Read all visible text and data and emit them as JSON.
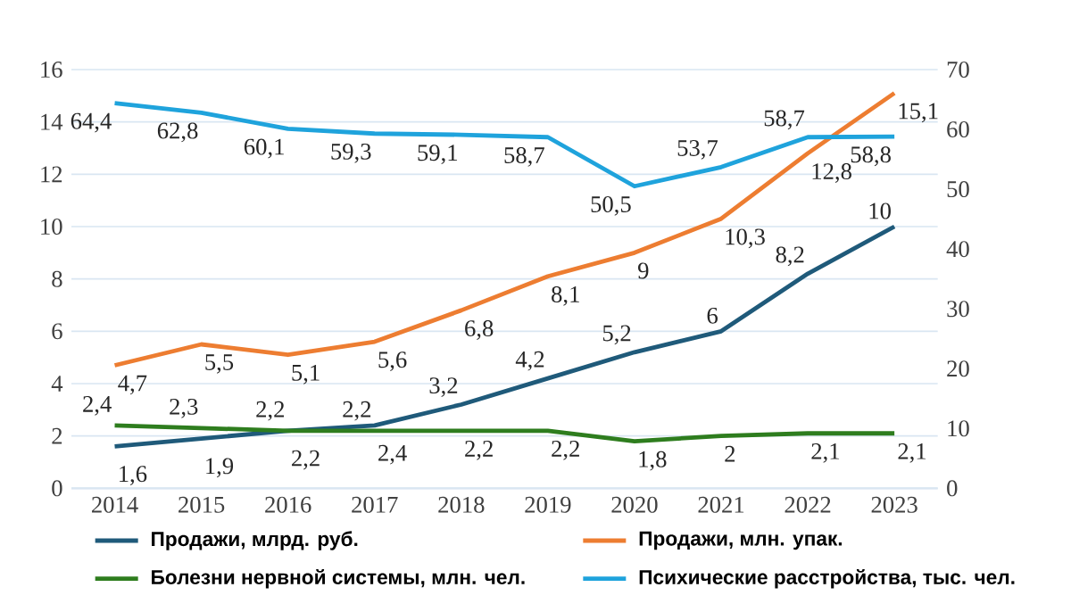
{
  "chart_data": {
    "type": "line",
    "categories": [
      "2014",
      "2015",
      "2016",
      "2017",
      "2018",
      "2019",
      "2020",
      "2021",
      "2022",
      "2023"
    ],
    "series": [
      {
        "name": "Продажи, млрд. руб.",
        "color": "#1f5a7a",
        "values": [
          1.6,
          1.9,
          2.2,
          2.4,
          3.2,
          4.2,
          5.2,
          6,
          8.2,
          10
        ],
        "value_labels": [
          "1,6",
          "1,9",
          "2,2",
          "2,4",
          "3,2",
          "4,2",
          "5,2",
          "6",
          "8,2",
          "10"
        ]
      },
      {
        "name": "Продажи, млн. упак.",
        "color": "#ed7d31",
        "values": [
          4.7,
          5.5,
          5.1,
          5.6,
          6.8,
          8.1,
          9,
          10.3,
          12.8,
          15.1
        ],
        "value_labels": [
          "4,7",
          "5,5",
          "5,1",
          "5,6",
          "6,8",
          "8,1",
          "9",
          "10,3",
          "12,8",
          "15,1"
        ]
      },
      {
        "name": "Болезни нервной системы, млн. чел.",
        "color": "#2e7d1e",
        "values": [
          2.4,
          2.3,
          2.2,
          2.2,
          2.2,
          2.2,
          1.8,
          2,
          2.1,
          2.1
        ],
        "value_labels": [
          "2,4",
          "2,3",
          "2,2",
          "2,2",
          "2,2",
          "2,2",
          "1,8",
          "2",
          "2,1",
          "2,1"
        ]
      },
      {
        "name": "Психические расстройства, тыс. чел.",
        "color": "#1fa3dc",
        "axis": "y2",
        "values": [
          64.4,
          62.8,
          60.1,
          59.3,
          59.1,
          58.7,
          50.5,
          53.7,
          58.7,
          58.8
        ],
        "value_labels": [
          "64,4",
          "62,8",
          "60,1",
          "59,3",
          "59,1",
          "58,7",
          "50,5",
          "53,7",
          "58,7",
          "58,8"
        ]
      }
    ],
    "ylim": [
      0,
      16
    ],
    "yticks": [
      0,
      2,
      4,
      6,
      8,
      10,
      12,
      14,
      16
    ],
    "y2lim": [
      0,
      70
    ],
    "y2ticks": [
      0,
      10,
      20,
      30,
      40,
      50,
      60,
      70
    ],
    "grid": "y",
    "legend": "bottom",
    "marker": "none",
    "line_style": "solid"
  }
}
